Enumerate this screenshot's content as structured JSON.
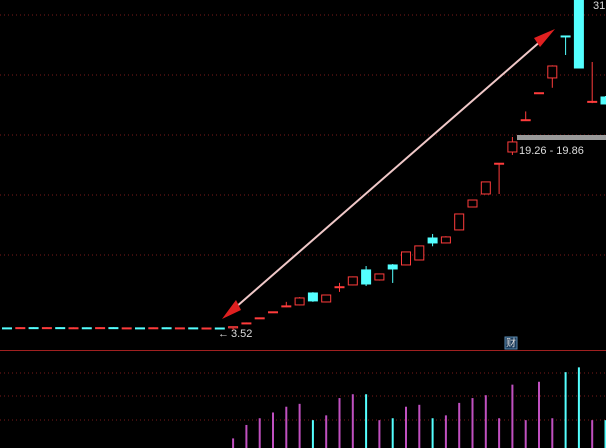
{
  "chart_data": {
    "type": "candlestick",
    "ylim": [
      1.83,
      31.42
    ],
    "up_color": "#ff3c3c",
    "down_color": "#54ffff",
    "open": [
      3.7,
      3.66,
      3.72,
      3.68,
      3.72,
      3.67,
      3.71,
      3.68,
      3.72,
      3.66,
      3.7,
      3.68,
      3.71,
      3.67,
      3.7,
      3.66,
      3.69,
      3.7,
      4.08,
      4.52,
      5.03,
      5.52,
      5.64,
      6.65,
      5.89,
      7.16,
      7.33,
      8.6,
      7.75,
      9.02,
      9.02,
      9.44,
      11.3,
      10.88,
      11.98,
      13.92,
      15.02,
      17.6,
      18.57,
      21.28,
      23.56,
      24.83,
      28.38,
      31.4,
      22.8,
      23.22
    ],
    "high": [
      3.73,
      3.75,
      3.75,
      3.75,
      3.75,
      3.74,
      3.74,
      3.75,
      3.75,
      3.73,
      3.73,
      3.74,
      3.74,
      3.73,
      3.73,
      3.72,
      3.72,
      3.82,
      4.16,
      4.58,
      5.08,
      5.9,
      6.3,
      6.72,
      6.5,
      7.5,
      8.05,
      8.93,
      8.3,
      9.1,
      10.15,
      10.65,
      11.64,
      11.45,
      13.33,
      14.51,
      16.04,
      17.64,
      19.84,
      22.0,
      23.6,
      25.9,
      28.4,
      31.42,
      26.18,
      23.3
    ],
    "low": [
      3.63,
      3.63,
      3.65,
      3.65,
      3.64,
      3.64,
      3.65,
      3.65,
      3.63,
      3.63,
      3.65,
      3.65,
      3.64,
      3.64,
      3.63,
      3.63,
      3.61,
      3.52,
      4.05,
      4.48,
      5.0,
      5.45,
      5.6,
      5.9,
      5.85,
      6.74,
      7.3,
      7.24,
      7.7,
      7.5,
      9.0,
      9.4,
      10.6,
      10.85,
      11.95,
      13.9,
      15.0,
      15.02,
      18.32,
      21.2,
      23.5,
      24.0,
      26.77,
      25.67,
      22.7,
      22.6
    ],
    "close": [
      3.66,
      3.72,
      3.68,
      3.72,
      3.67,
      3.71,
      3.68,
      3.72,
      3.66,
      3.7,
      3.68,
      3.71,
      3.67,
      3.7,
      3.66,
      3.69,
      3.64,
      3.8,
      4.12,
      4.55,
      5.06,
      5.56,
      6.23,
      5.98,
      6.48,
      7.18,
      8.01,
      7.41,
      8.26,
      8.68,
      10.12,
      10.63,
      10.88,
      11.39,
      13.33,
      14.51,
      16.04,
      17.62,
      19.42,
      21.3,
      23.58,
      25.84,
      28.36,
      25.67,
      22.85,
      22.63
    ],
    "volume_lim": [
      0,
      100
    ],
    "volume_up_color": "#c050c0",
    "volume_down_color": "#54ffff",
    "volume": [
      null,
      null,
      null,
      null,
      null,
      null,
      null,
      null,
      null,
      null,
      null,
      null,
      null,
      null,
      null,
      null,
      null,
      10,
      24,
      31,
      37,
      43,
      46,
      29,
      34,
      52,
      56,
      56,
      29,
      31,
      43,
      45,
      31,
      34,
      47,
      52,
      55,
      31,
      66,
      29,
      69,
      31,
      79,
      84,
      29,
      29
    ],
    "high_label": "31",
    "range_label": "19.26 - 19.86",
    "low_label": "3.52",
    "badge": "财"
  }
}
